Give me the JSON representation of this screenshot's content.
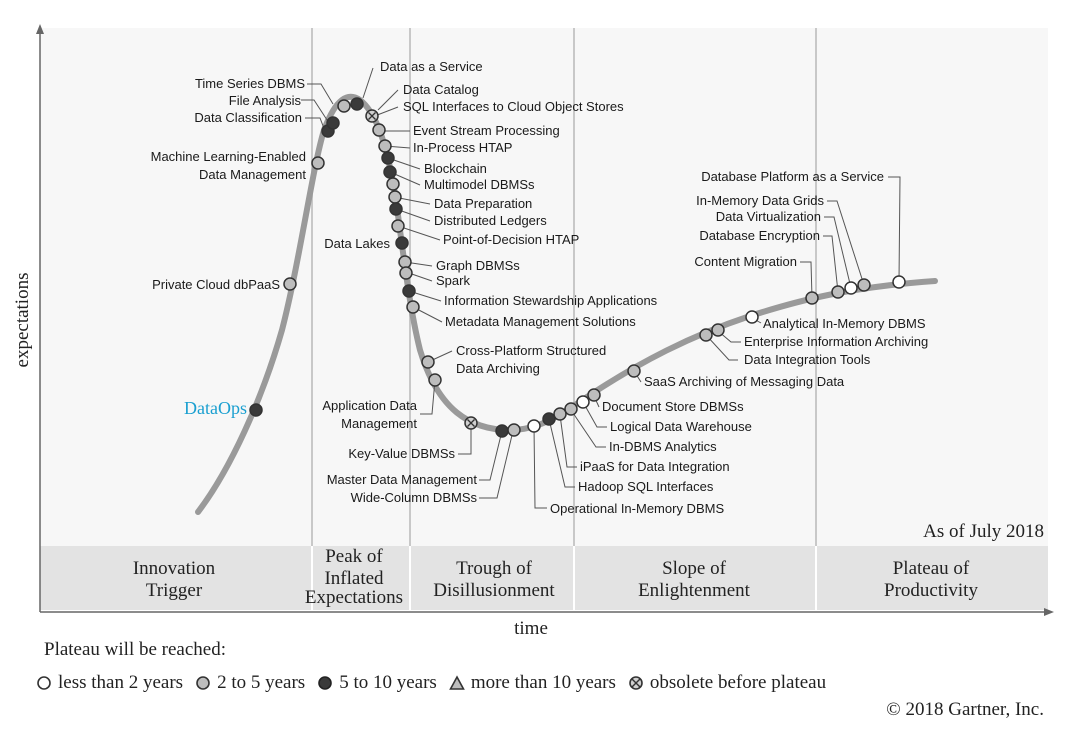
{
  "axes": {
    "y_label": "expectations",
    "x_label": "time"
  },
  "as_of": "As of July 2018",
  "copyright": "© 2018 Gartner, Inc.",
  "phases": [
    {
      "lines": [
        "Innovation",
        "Trigger"
      ]
    },
    {
      "lines": [
        "Peak of",
        "Inflated",
        "Expectations"
      ]
    },
    {
      "lines": [
        "Trough of",
        "Disillusionment"
      ]
    },
    {
      "lines": [
        "Slope of",
        "Enlightenment"
      ]
    },
    {
      "lines": [
        "Plateau of",
        "Productivity"
      ]
    }
  ],
  "legend": {
    "title": "Plateau will be reached:",
    "items": [
      {
        "key": "lt2",
        "label": "less than 2 years"
      },
      {
        "key": "y2to5",
        "label": "2 to 5 years"
      },
      {
        "key": "y5to10",
        "label": "5 to 10 years"
      },
      {
        "key": "gt10",
        "label": "more than 10 years"
      },
      {
        "key": "obsolete",
        "label": "obsolete before plateau"
      }
    ]
  },
  "colors": {
    "lt2": "#ffffff",
    "y2to5": "#bdbdbd",
    "y5to10": "#3a3a3a",
    "curve": "#9a9a9a",
    "dataops": "#1a9fd0",
    "band": "#e3e3e3"
  },
  "technologies": [
    {
      "name": "DataOps",
      "status": "y5to10",
      "highlight": true
    },
    {
      "name": "Private Cloud dbPaaS",
      "status": "y2to5"
    },
    {
      "name": "Machine Learning-Enabled Data Management",
      "status": "y2to5"
    },
    {
      "name": "Data Classification",
      "status": "y5to10"
    },
    {
      "name": "File Analysis",
      "status": "y5to10"
    },
    {
      "name": "Time Series DBMS",
      "status": "y2to5"
    },
    {
      "name": "Data as a Service",
      "status": "y5to10"
    },
    {
      "name": "Data Catalog",
      "status": "obsolete"
    },
    {
      "name": "SQL Interfaces to Cloud Object Stores",
      "status": "y2to5"
    },
    {
      "name": "Event Stream Processing",
      "status": "y2to5"
    },
    {
      "name": "In-Process HTAP",
      "status": "y5to10"
    },
    {
      "name": "Blockchain",
      "status": "y5to10"
    },
    {
      "name": "Multimodel DBMSs",
      "status": "y2to5"
    },
    {
      "name": "Data Preparation",
      "status": "y2to5"
    },
    {
      "name": "Distributed Ledgers",
      "status": "y5to10"
    },
    {
      "name": "Point-of-Decision HTAP",
      "status": "y2to5"
    },
    {
      "name": "Data Lakes",
      "status": "y5to10"
    },
    {
      "name": "Graph DBMSs",
      "status": "y2to5"
    },
    {
      "name": "Spark",
      "status": "y2to5"
    },
    {
      "name": "Information Stewardship Applications",
      "status": "y5to10"
    },
    {
      "name": "Metadata Management Solutions",
      "status": "y2to5"
    },
    {
      "name": "Cross-Platform Structured Data Archiving",
      "status": "y2to5"
    },
    {
      "name": "Application Data Management",
      "status": "y2to5"
    },
    {
      "name": "Key-Value DBMSs",
      "status": "obsolete"
    },
    {
      "name": "Master Data Management",
      "status": "y5to10"
    },
    {
      "name": "Wide-Column DBMSs",
      "status": "y2to5"
    },
    {
      "name": "Operational In-Memory DBMS",
      "status": "lt2"
    },
    {
      "name": "Hadoop SQL Interfaces",
      "status": "y5to10"
    },
    {
      "name": "iPaaS for Data Integration",
      "status": "y2to5"
    },
    {
      "name": "In-DBMS Analytics",
      "status": "y2to5"
    },
    {
      "name": "Logical Data Warehouse",
      "status": "lt2"
    },
    {
      "name": "Document Store DBMSs",
      "status": "y2to5"
    },
    {
      "name": "SaaS Archiving of Messaging Data",
      "status": "y2to5"
    },
    {
      "name": "Data Integration Tools",
      "status": "y2to5"
    },
    {
      "name": "Enterprise Information Archiving",
      "status": "y2to5"
    },
    {
      "name": "Analytical In-Memory DBMS",
      "status": "lt2"
    },
    {
      "name": "Content Migration",
      "status": "y2to5"
    },
    {
      "name": "Database Encryption",
      "status": "y2to5"
    },
    {
      "name": "Data Virtualization",
      "status": "lt2"
    },
    {
      "name": "In-Memory Data Grids",
      "status": "y2to5"
    },
    {
      "name": "Database Platform as a Service",
      "status": "lt2"
    }
  ]
}
